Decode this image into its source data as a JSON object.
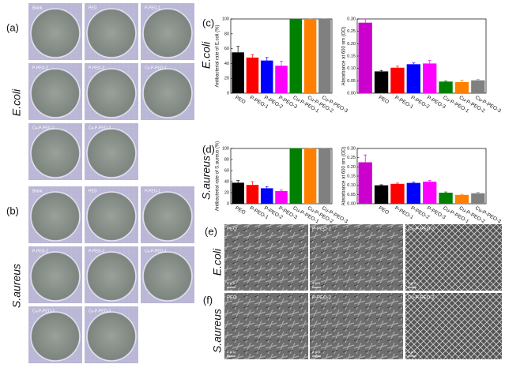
{
  "figure": {
    "plate_panels": [
      {
        "label": "(a)",
        "organism": "E.coli",
        "plates": [
          "Blank",
          "PEO",
          "P-PEO-1",
          "P-PEO-2",
          "P-PEO-3",
          "Cu-P-PEO-1",
          "Cu-P-PEO-2",
          "Cu-P-PEO-3"
        ]
      },
      {
        "label": "(b)",
        "organism": "S.aureus",
        "plates": [
          "Blank",
          "PEO",
          "P-PEO-1",
          "P-PEO-2",
          "P-PEO-3",
          "Cu-P-PEO-1",
          "Cu-P-PEO-2",
          "Cu-P-PEO-3"
        ]
      }
    ],
    "chart_panels": [
      {
        "label": "(c)",
        "organism": "E.coli"
      },
      {
        "label": "(d)",
        "organism": "S.aureus"
      }
    ],
    "sem_panels": [
      {
        "label": "(e)",
        "organism": "E.coli",
        "images": [
          "PEO",
          "P-PEO-2",
          "Cu-P-PEO-2"
        ],
        "scale": "2 μm"
      },
      {
        "label": "(f)",
        "organism": "S.aureus",
        "images": [
          "PEO",
          "P-PEO-2",
          "Cu-P-PEO-2"
        ],
        "scale": "2 μm"
      }
    ]
  },
  "chart_data": [
    {
      "type": "bar",
      "y_label": "Antibacterial rate of E.coli (%)",
      "categories": [
        "PEO",
        "P-PEO-1",
        "P-PEO-2",
        "P-PEO-3",
        "Cu-P-PEO-1",
        "Cu-P-PEO-2",
        "Cu-P-PEO-3"
      ],
      "values": [
        55,
        48,
        44,
        37,
        100,
        100,
        100
      ],
      "errors": [
        8,
        4,
        4,
        6,
        0,
        0,
        0
      ],
      "colors": [
        "#000000",
        "#ff0000",
        "#0000ff",
        "#ff00ff",
        "#008000",
        "#ff8000",
        "#808080"
      ],
      "ylim": [
        0,
        100
      ],
      "yticks": [
        0,
        20,
        40,
        60,
        80,
        100
      ]
    },
    {
      "type": "bar",
      "y_label": "Absorbance at 600 nm (OD)",
      "categories": [
        null,
        "PEO",
        "P-PEO-1",
        "P-PEO-2",
        "P-PEO-3",
        "Cu-P-PEO-1",
        "Cu-P-PEO-2",
        "Cu-P-PEO-3"
      ],
      "values": [
        0.285,
        0.088,
        0.103,
        0.117,
        0.12,
        0.047,
        0.045,
        0.052
      ],
      "errors": [
        0.015,
        0.004,
        0.006,
        0.005,
        0.012,
        0.003,
        0.008,
        0.003
      ],
      "colors": [
        "#cc00cc",
        "#000000",
        "#ff0000",
        "#0000ff",
        "#ff00ff",
        "#008000",
        "#ff8000",
        "#808080"
      ],
      "ylim": [
        0,
        0.3
      ],
      "yticks": [
        {
          "value": 0,
          "label": "0.00"
        },
        {
          "value": 0.05,
          "label": "0.05"
        },
        {
          "value": 0.1,
          "label": "0.10"
        },
        {
          "value": 0.15,
          "label": "0.15"
        },
        {
          "value": 0.2,
          "label": "0.20"
        },
        {
          "value": 0.25,
          "label": "0.25"
        },
        {
          "value": 0.3,
          "label": "0.30"
        }
      ]
    },
    {
      "type": "bar",
      "y_label": "Antibacterial rate of S.aureus (%)",
      "categories": [
        "PEO",
        "P-PEO-1",
        "P-PEO-2",
        "P-PEO-3",
        "Cu-P-PEO-1",
        "Cu-P-PEO-2",
        "Cu-P-PEO-3"
      ],
      "values": [
        38,
        34,
        28,
        23,
        100,
        100,
        100
      ],
      "errors": [
        4,
        6,
        3,
        2,
        0,
        0,
        0
      ],
      "colors": [
        "#000000",
        "#ff0000",
        "#0000ff",
        "#ff00ff",
        "#008000",
        "#ff8000",
        "#808080"
      ],
      "ylim": [
        0,
        100
      ],
      "yticks": [
        0,
        20,
        40,
        60,
        80,
        100
      ]
    },
    {
      "type": "bar",
      "y_label": "Absorbance at 600 nm (OD)",
      "categories": [
        null,
        "PEO",
        "P-PEO-1",
        "P-PEO-2",
        "P-PEO-3",
        "Cu-P-PEO-1",
        "Cu-P-PEO-2",
        "Cu-P-PEO-3"
      ],
      "values": [
        0.225,
        0.1,
        0.108,
        0.113,
        0.12,
        0.06,
        0.048,
        0.057
      ],
      "errors": [
        0.04,
        0.003,
        0.004,
        0.004,
        0.006,
        0.004,
        0.003,
        0.004
      ],
      "colors": [
        "#cc00cc",
        "#000000",
        "#ff0000",
        "#0000ff",
        "#ff00ff",
        "#008000",
        "#ff8000",
        "#808080"
      ],
      "ylim": [
        0,
        0.3
      ],
      "yticks": [
        {
          "value": 0,
          "label": "0.00"
        },
        {
          "value": 0.05,
          "label": "0.05"
        },
        {
          "value": 0.1,
          "label": "0.10"
        },
        {
          "value": 0.15,
          "label": "0.15"
        },
        {
          "value": 0.2,
          "label": "0.20"
        },
        {
          "value": 0.25,
          "label": "0.25"
        },
        {
          "value": 0.3,
          "label": "0.30"
        }
      ]
    }
  ]
}
